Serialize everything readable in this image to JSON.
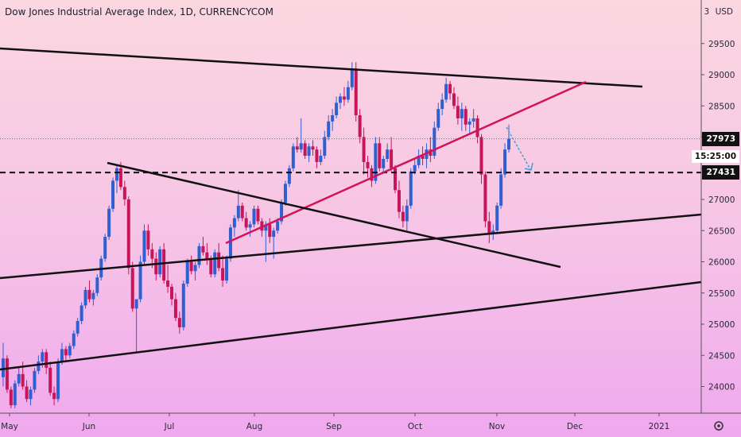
{
  "title": "Dow Jones Industrial Average Index, 1D, CURRENCYCOM",
  "currency_label": "USD",
  "currency_prefix": "3",
  "colors": {
    "up": "#2f5fd0",
    "down": "#c8155a",
    "trendline": "#111111",
    "redline": "#d21457",
    "arrow": "#3fa3d1"
  },
  "price_label": "27973",
  "countdown_label": "15:25:00",
  "level_label": "27431",
  "chart_data": {
    "type": "candlestick",
    "title": "Dow Jones Industrial Average Index, 1D, CURRENCYCOM",
    "ylim": [
      23600,
      30100
    ],
    "y_ticks": [
      24000,
      24500,
      25000,
      25500,
      26000,
      26500,
      27000,
      27500,
      28000,
      28500,
      29000,
      29500
    ],
    "x_ticks": [
      "May",
      "Jun",
      "Jul",
      "Aug",
      "Sep",
      "Oct",
      "Nov",
      "Dec",
      "2021"
    ],
    "grid": false,
    "last_price": 27973,
    "horizontal_level": 27431,
    "candles": [
      [
        24150,
        24700,
        24000,
        24450
      ],
      [
        24450,
        24500,
        23900,
        23950
      ],
      [
        23950,
        24000,
        23650,
        23700
      ],
      [
        23700,
        24100,
        23650,
        24050
      ],
      [
        24050,
        24300,
        24000,
        24200
      ],
      [
        24200,
        24400,
        23950,
        24000
      ],
      [
        24000,
        24100,
        23750,
        23800
      ],
      [
        23800,
        24000,
        23700,
        23950
      ],
      [
        23950,
        24300,
        23900,
        24250
      ],
      [
        24250,
        24500,
        24200,
        24400
      ],
      [
        24400,
        24600,
        24300,
        24550
      ],
      [
        24550,
        24600,
        24200,
        24300
      ],
      [
        24300,
        24400,
        23850,
        23900
      ],
      [
        23900,
        24000,
        23700,
        23800
      ],
      [
        23800,
        24450,
        23750,
        24400
      ],
      [
        24400,
        24700,
        24350,
        24600
      ],
      [
        24600,
        24650,
        24400,
        24500
      ],
      [
        24500,
        24700,
        24450,
        24650
      ],
      [
        24650,
        24900,
        24600,
        24850
      ],
      [
        24850,
        25100,
        24800,
        25050
      ],
      [
        25050,
        25350,
        25000,
        25300
      ],
      [
        25300,
        25600,
        25250,
        25550
      ],
      [
        25550,
        25700,
        25350,
        25400
      ],
      [
        25400,
        25550,
        25300,
        25500
      ],
      [
        25500,
        25800,
        25450,
        25750
      ],
      [
        25750,
        26100,
        25700,
        26050
      ],
      [
        26050,
        26450,
        26000,
        26400
      ],
      [
        26400,
        26900,
        26350,
        26850
      ],
      [
        26850,
        27350,
        26800,
        27300
      ],
      [
        27300,
        27550,
        27100,
        27500
      ],
      [
        27500,
        27600,
        27150,
        27200
      ],
      [
        27200,
        27300,
        26900,
        27000
      ],
      [
        27000,
        27050,
        25800,
        25900
      ],
      [
        25900,
        26000,
        25200,
        25250
      ],
      [
        25250,
        25400,
        24550,
        25400
      ],
      [
        25400,
        26100,
        25350,
        26000
      ],
      [
        26000,
        26600,
        25950,
        26500
      ],
      [
        26500,
        26600,
        26100,
        26200
      ],
      [
        26200,
        26300,
        25900,
        26050
      ],
      [
        26050,
        26150,
        25700,
        25800
      ],
      [
        25800,
        26250,
        25750,
        26200
      ],
      [
        26200,
        26300,
        25650,
        25700
      ],
      [
        25700,
        25950,
        25500,
        25600
      ],
      [
        25600,
        25650,
        25300,
        25400
      ],
      [
        25400,
        25500,
        25050,
        25100
      ],
      [
        25100,
        25200,
        24850,
        24950
      ],
      [
        24950,
        25700,
        24900,
        25650
      ],
      [
        25650,
        26050,
        25600,
        26000
      ],
      [
        26000,
        26100,
        25800,
        25850
      ],
      [
        25850,
        26000,
        25700,
        25950
      ],
      [
        25950,
        26300,
        25900,
        26250
      ],
      [
        26250,
        26400,
        26100,
        26150
      ],
      [
        26150,
        26300,
        25950,
        26050
      ],
      [
        26050,
        26100,
        25750,
        25800
      ],
      [
        25800,
        26200,
        25750,
        26150
      ],
      [
        26150,
        26300,
        25850,
        25900
      ],
      [
        25900,
        26100,
        25600,
        25700
      ],
      [
        25700,
        26100,
        25650,
        26050
      ],
      [
        26050,
        26600,
        26000,
        26550
      ],
      [
        26550,
        26750,
        26400,
        26700
      ],
      [
        26700,
        27150,
        26650,
        26900
      ],
      [
        26900,
        26950,
        26650,
        26700
      ],
      [
        26700,
        26800,
        26500,
        26550
      ],
      [
        26550,
        26650,
        26400,
        26600
      ],
      [
        26600,
        26900,
        26550,
        26850
      ],
      [
        26850,
        26900,
        26600,
        26650
      ],
      [
        26650,
        26700,
        26400,
        26500
      ],
      [
        26500,
        26650,
        26000,
        26600
      ],
      [
        26600,
        26700,
        26300,
        26400
      ],
      [
        26400,
        26550,
        26050,
        26500
      ],
      [
        26500,
        26700,
        26450,
        26650
      ],
      [
        26650,
        27000,
        26600,
        26950
      ],
      [
        26950,
        27300,
        26900,
        27250
      ],
      [
        27250,
        27550,
        27200,
        27500
      ],
      [
        27500,
        27900,
        27450,
        27850
      ],
      [
        27850,
        28000,
        27750,
        27800
      ],
      [
        27800,
        28300,
        27750,
        27900
      ],
      [
        27900,
        27950,
        27650,
        27700
      ],
      [
        27700,
        27900,
        27600,
        27850
      ],
      [
        27850,
        27950,
        27700,
        27800
      ],
      [
        27800,
        27850,
        27500,
        27600
      ],
      [
        27600,
        27800,
        27550,
        27700
      ],
      [
        27700,
        28100,
        27650,
        28000
      ],
      [
        28000,
        28350,
        27950,
        28250
      ],
      [
        28250,
        28450,
        28100,
        28350
      ],
      [
        28350,
        28650,
        28300,
        28550
      ],
      [
        28550,
        28700,
        28450,
        28650
      ],
      [
        28650,
        28800,
        28500,
        28600
      ],
      [
        28600,
        28900,
        28550,
        28800
      ],
      [
        28800,
        29200,
        28750,
        29100
      ],
      [
        29100,
        29200,
        28250,
        28350
      ],
      [
        28350,
        28450,
        27900,
        28000
      ],
      [
        28000,
        28150,
        27400,
        27600
      ],
      [
        27600,
        27700,
        27350,
        27500
      ],
      [
        27500,
        27550,
        27200,
        27300
      ],
      [
        27300,
        28000,
        27250,
        27900
      ],
      [
        27900,
        28000,
        27450,
        27500
      ],
      [
        27500,
        27700,
        27450,
        27650
      ],
      [
        27650,
        27900,
        27600,
        27800
      ],
      [
        27800,
        28000,
        27450,
        27500
      ],
      [
        27500,
        27550,
        27100,
        27150
      ],
      [
        27150,
        27300,
        26700,
        26800
      ],
      [
        26800,
        26900,
        26550,
        26650
      ],
      [
        26650,
        27000,
        26500,
        26900
      ],
      [
        26900,
        27500,
        26850,
        27450
      ],
      [
        27450,
        27650,
        27400,
        27550
      ],
      [
        27550,
        27800,
        27500,
        27700
      ],
      [
        27700,
        27850,
        27550,
        27650
      ],
      [
        27650,
        27900,
        27500,
        27800
      ],
      [
        27800,
        28000,
        27600,
        27700
      ],
      [
        27700,
        28250,
        27650,
        28150
      ],
      [
        28150,
        28550,
        28100,
        28450
      ],
      [
        28450,
        28700,
        28350,
        28600
      ],
      [
        28600,
        28950,
        28550,
        28850
      ],
      [
        28850,
        28900,
        28600,
        28700
      ],
      [
        28700,
        28800,
        28450,
        28500
      ],
      [
        28500,
        28650,
        28200,
        28300
      ],
      [
        28300,
        28550,
        28100,
        28450
      ],
      [
        28450,
        28500,
        28100,
        28200
      ],
      [
        28200,
        28300,
        28050,
        28250
      ],
      [
        28250,
        28450,
        28150,
        28300
      ],
      [
        28300,
        28350,
        27900,
        28000
      ],
      [
        28000,
        28050,
        27250,
        27400
      ],
      [
        27400,
        27450,
        26550,
        26650
      ],
      [
        26650,
        26800,
        26300,
        26450
      ],
      [
        26450,
        26600,
        26350,
        26500
      ],
      [
        26500,
        26950,
        26450,
        26900
      ],
      [
        26900,
        27500,
        26850,
        27400
      ],
      [
        27400,
        27900,
        27350,
        27800
      ],
      [
        27800,
        28200,
        27750,
        27973
      ]
    ],
    "annotations": [
      "upper descending resistance line",
      "red rising trendline",
      "falling wedge line from June high",
      "lower rising support line",
      "lowest rising channel line",
      "dashed horizontal level at 27431",
      "forecast arrow (blue)"
    ]
  }
}
